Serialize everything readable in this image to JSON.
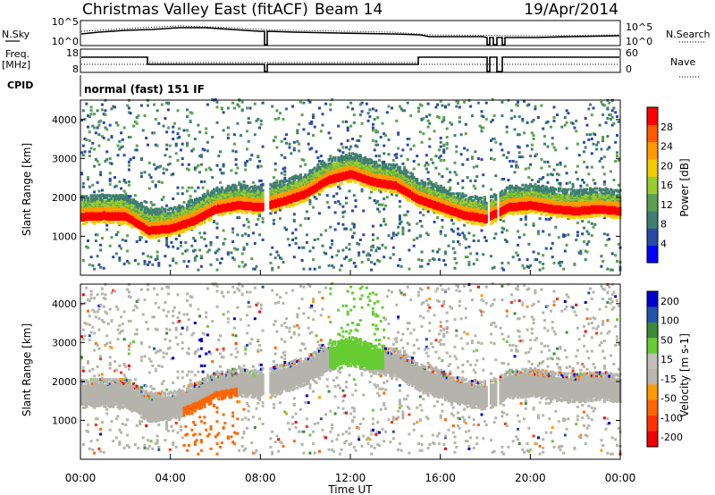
{
  "header": {
    "station": "Christmas Valley East (fitACF)",
    "beam": "Beam 14",
    "date": "19/Apr/2014"
  },
  "summary_panels": {
    "nsky_label": "N.Sky",
    "nsearch_label": "N.Search",
    "noise_ticks": [
      "10^5",
      "10^0"
    ],
    "freq_label": "Freq.",
    "freq_unit": "[MHz]",
    "freq_ticks": [
      "18",
      "8"
    ],
    "nave_label": "Nave",
    "nave_ticks": [
      "60",
      "0"
    ],
    "cpid_label": "CPID",
    "cpid_value": "normal (fast) 151 IF"
  },
  "colors": {
    "power_scale": [
      "#0000ff",
      "#2a4aa8",
      "#3f7f6f",
      "#5aa050",
      "#9acc30",
      "#f4cc00",
      "#ff9a00",
      "#ff5a00",
      "#ff0000"
    ],
    "velocity_scale": [
      "#0000cc",
      "#2255aa",
      "#3a8a3a",
      "#66cc33",
      "#c0c0b8",
      "#b8b8b0",
      "#ff9900",
      "#ff6600",
      "#ff3300",
      "#ee0000"
    ],
    "ground_scatter": "#b4b4ac"
  },
  "chart_data": [
    {
      "type": "heatmap",
      "title": "",
      "xlabel": "Time UT",
      "ylabel": "Slant Range [km]",
      "x_range": [
        "00:00",
        "24:00"
      ],
      "x_ticks": [
        "00:00",
        "04:00",
        "08:00",
        "12:00",
        "16:00",
        "20:00",
        "00:00"
      ],
      "ylim": [
        0,
        4500
      ],
      "y_ticks": [
        1000,
        2000,
        3000,
        4000
      ],
      "colorbar_label": "Power [dB]",
      "colorbar_ticks": [
        4,
        8,
        12,
        16,
        20,
        24,
        28
      ],
      "main_band_center_km": [
        {
          "t": 0,
          "r": 1550
        },
        {
          "t": 1,
          "r": 1580
        },
        {
          "t": 2,
          "r": 1560
        },
        {
          "t": 3,
          "r": 1200
        },
        {
          "t": 4,
          "r": 1250
        },
        {
          "t": 5,
          "r": 1450
        },
        {
          "t": 6,
          "r": 1750
        },
        {
          "t": 7,
          "r": 1850
        },
        {
          "t": 8,
          "r": 1800
        },
        {
          "t": 9,
          "r": 1950
        },
        {
          "t": 10,
          "r": 2150
        },
        {
          "t": 11,
          "r": 2500
        },
        {
          "t": 12,
          "r": 2650
        },
        {
          "t": 13,
          "r": 2450
        },
        {
          "t": 14,
          "r": 2350
        },
        {
          "t": 15,
          "r": 2000
        },
        {
          "t": 16,
          "r": 1800
        },
        {
          "t": 17,
          "r": 1600
        },
        {
          "t": 18,
          "r": 1500
        },
        {
          "t": 19,
          "r": 1800
        },
        {
          "t": 20,
          "r": 1850
        },
        {
          "t": 21,
          "r": 1750
        },
        {
          "t": 22,
          "r": 1700
        },
        {
          "t": 23,
          "r": 1750
        },
        {
          "t": 24,
          "r": 1700
        }
      ]
    },
    {
      "type": "heatmap",
      "title": "",
      "xlabel": "Time UT",
      "ylabel": "Slant Range [km]",
      "x_range": [
        "00:00",
        "24:00"
      ],
      "x_ticks": [
        "00:00",
        "04:00",
        "08:00",
        "12:00",
        "16:00",
        "20:00",
        "00:00"
      ],
      "ylim": [
        0,
        4500
      ],
      "y_ticks": [
        1000,
        2000,
        3000,
        4000
      ],
      "colorbar_label": "Velocity [m s-1]",
      "colorbar_ticks": [
        200,
        100,
        50,
        15,
        -15,
        -50,
        -100,
        -200
      ]
    }
  ]
}
